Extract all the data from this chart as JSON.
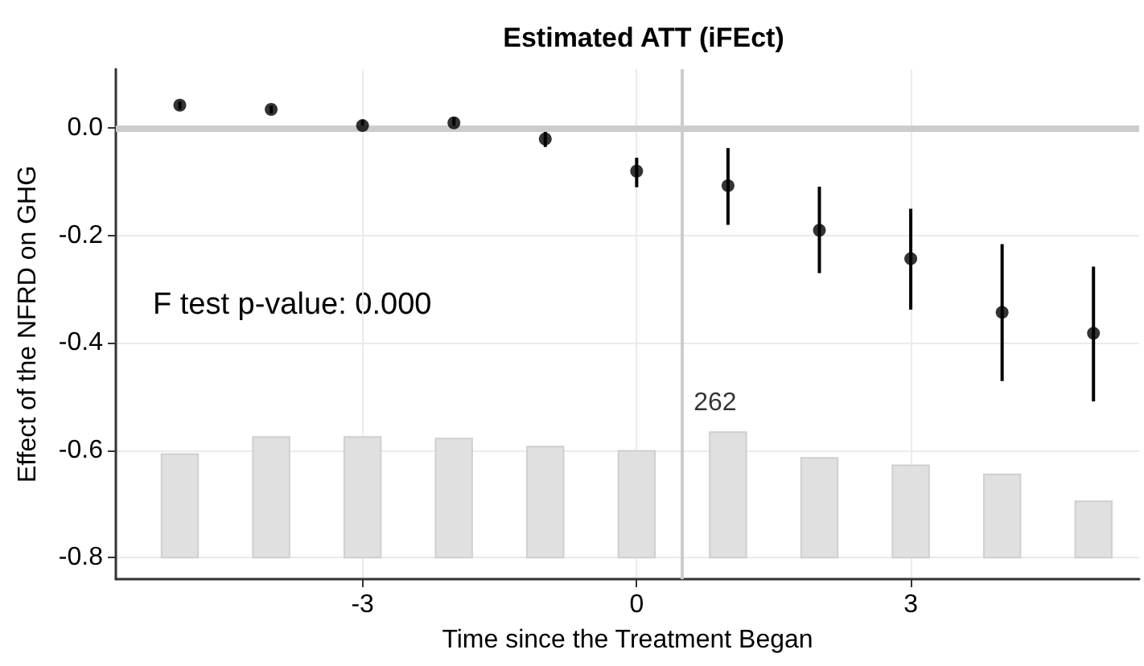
{
  "chart_data": {
    "type": "scatter",
    "title": "Estimated ATT (iFEct)",
    "xlabel": "Time since the Treatment Began",
    "ylabel": "Effect of the NFRD on GHG",
    "annotations": [
      "F test p-value: 0.000",
      {
        "text": "262",
        "x": 1,
        "y": -0.566
      }
    ],
    "x": [
      -5,
      -4,
      -3,
      -2,
      -1,
      0,
      1,
      2,
      3,
      4,
      5
    ],
    "series": [
      {
        "type": "bar",
        "color": "#e0e0e0",
        "x": [
          -5,
          -4,
          -3,
          -2,
          -1,
          0,
          1,
          2,
          3,
          4,
          5
        ],
        "base": [
          -0.8,
          -0.8,
          -0.8,
          -0.8,
          -0.8,
          -0.8,
          -0.8,
          -0.8,
          -0.8,
          -0.8,
          -0.8
        ],
        "values": [
          0.193,
          0.225,
          0.225,
          0.222,
          0.207,
          0.199,
          0.234,
          0.186,
          0.172,
          0.155,
          0.105
        ]
      },
      {
        "color": "#000000",
        "values": [
          0.043,
          0.035,
          0.005,
          0.01,
          -0.02,
          -0.08,
          -0.107,
          -0.19,
          -0.243,
          -0.343,
          -0.382
        ],
        "errors": [
          [
            0.035,
            0.05
          ],
          [
            0.028,
            0.042
          ],
          [
            -0.005,
            0.015
          ],
          [
            0.0,
            0.02
          ],
          [
            -0.035,
            -0.005
          ],
          [
            -0.11,
            -0.055
          ],
          [
            -0.18,
            -0.037
          ],
          [
            -0.27,
            -0.109
          ],
          [
            -0.338,
            -0.15
          ],
          [
            -0.471,
            -0.216
          ],
          [
            -0.509,
            -0.258
          ]
        ]
      }
    ],
    "xlim": [
      -5.7,
      5.5
    ],
    "xticks": [
      -3,
      0,
      3
    ],
    "ylim": [
      -0.84,
      0.11
    ],
    "yticks": [
      {
        "value": -0.8,
        "label": "-0.8"
      },
      {
        "value": -0.6,
        "label": "-0.6"
      },
      {
        "value": -0.4,
        "label": "-0.4"
      },
      {
        "value": -0.2,
        "label": "-0.2"
      },
      {
        "value": 0,
        "label": "0.0"
      }
    ],
    "ref_lines": [
      {
        "axis": "y",
        "value": 0,
        "color": "#cccccc"
      },
      {
        "axis": "x",
        "value": 0.5,
        "color": "#cccccc"
      }
    ],
    "grid": true,
    "marker": "circle"
  }
}
